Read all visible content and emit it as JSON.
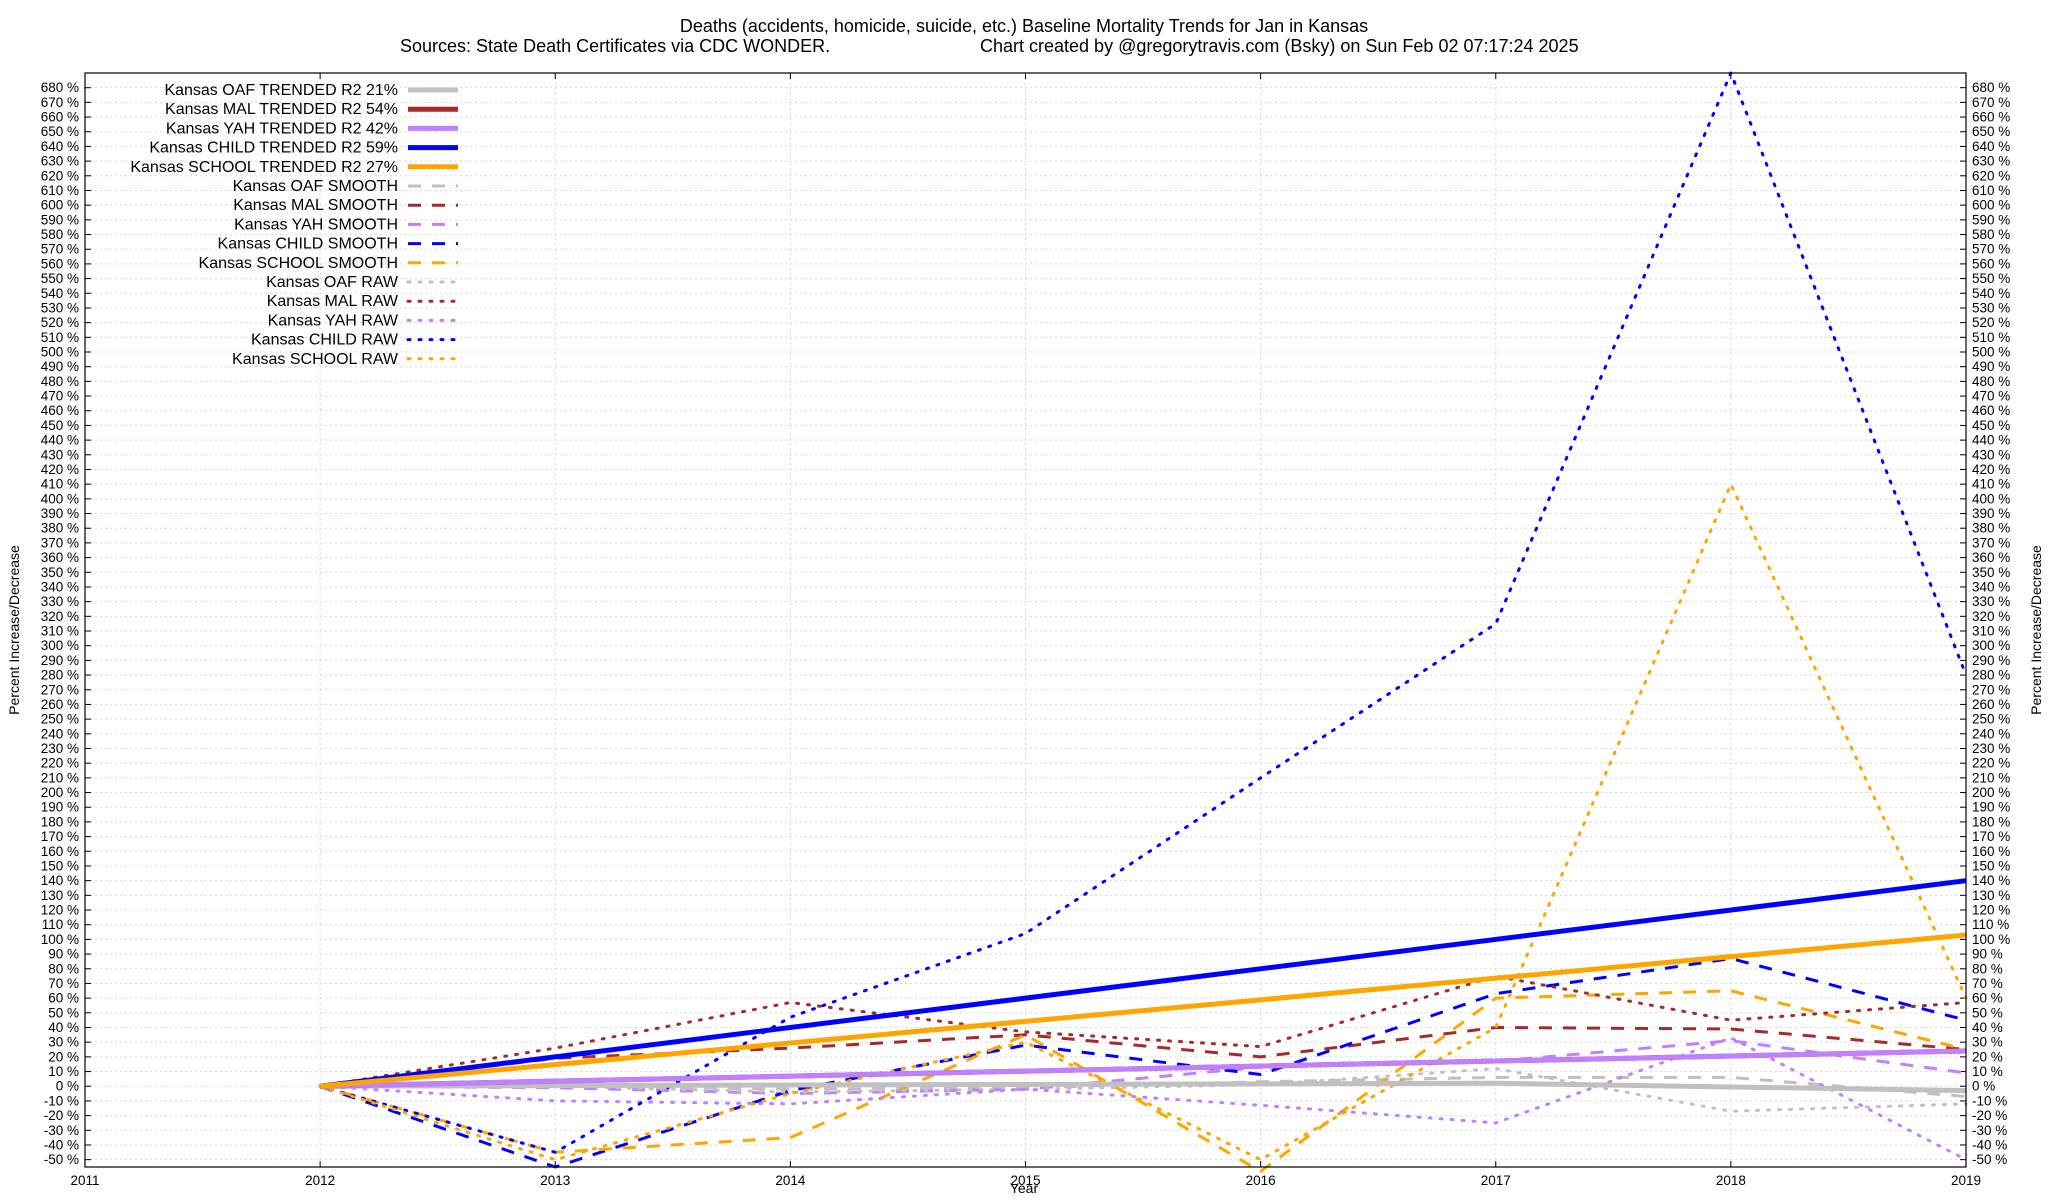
{
  "chart_data": {
    "type": "line",
    "title": "Deaths (accidents, homicide, suicide, etc.)  Baseline Mortality Trends for Jan in Kansas",
    "subtitle_left": "Sources: State Death Certificates via CDC WONDER.",
    "subtitle_right": "Chart created by @gregorytravis.com (Bsky) on Sun Feb 02 07:17:24 2025",
    "xlabel": "Year",
    "ylabel": "Percent Increase/Decrease",
    "ylabel_right": "Percent Increase/Decrease",
    "xlim": [
      2011,
      2019
    ],
    "ylim": [
      -55,
      690
    ],
    "x_ticks": [
      2011,
      2012,
      2013,
      2014,
      2015,
      2016,
      2017,
      2018,
      2019
    ],
    "y_tick_start": -50,
    "y_tick_end": 680,
    "y_tick_step": 10,
    "y_tick_suffix": " %",
    "grid": true,
    "legend_position": "top-left",
    "series": [
      {
        "name": "Kansas OAF TRENDED R2  21%",
        "style": "solid",
        "width": 5,
        "color": "#c0c0c0",
        "x": [
          2012,
          2017,
          2019
        ],
        "y": [
          0,
          2,
          -3
        ]
      },
      {
        "name": "Kansas MAL TRENDED R2  54%",
        "style": "solid",
        "width": 5,
        "color": "#a52a2a",
        "x": [
          2012,
          2019
        ],
        "y": [
          0,
          24
        ]
      },
      {
        "name": "Kansas YAH TRENDED R2  42%",
        "style": "solid",
        "width": 5,
        "color": "#c080ff",
        "x": [
          2012,
          2019
        ],
        "y": [
          0,
          24
        ]
      },
      {
        "name": "Kansas CHILD TRENDED R2  59%",
        "style": "solid",
        "width": 5,
        "color": "#0000ff",
        "x": [
          2012,
          2019
        ],
        "y": [
          0,
          140
        ]
      },
      {
        "name": "Kansas SCHOOL TRENDED R2  27%",
        "style": "solid",
        "width": 5,
        "color": "#ffa500",
        "x": [
          2012,
          2019
        ],
        "y": [
          0,
          103
        ]
      },
      {
        "name": "Kansas OAF SMOOTH",
        "style": "dashed",
        "width": 3,
        "color": "#c0c0c0",
        "x": [
          2012,
          2013,
          2014,
          2015,
          2016,
          2017,
          2018,
          2019
        ],
        "y": [
          0,
          0,
          -2,
          -1,
          3,
          6,
          6,
          -7
        ]
      },
      {
        "name": "Kansas MAL SMOOTH",
        "style": "dashed",
        "width": 3,
        "color": "#a52a2a",
        "x": [
          2012,
          2013,
          2014,
          2015,
          2016,
          2017,
          2018,
          2019
        ],
        "y": [
          0,
          19,
          26,
          35,
          20,
          40,
          39,
          25
        ]
      },
      {
        "name": "Kansas YAH SMOOTH",
        "style": "dashed",
        "width": 3,
        "color": "#c080ff",
        "x": [
          2012,
          2013,
          2014,
          2015,
          2016,
          2017,
          2018,
          2019
        ],
        "y": [
          0,
          -1,
          -5,
          -2,
          13,
          17,
          31,
          9
        ]
      },
      {
        "name": "Kansas CHILD SMOOTH",
        "style": "dashed",
        "width": 3,
        "color": "#0000ff",
        "x": [
          2012,
          2013,
          2014,
          2015,
          2016,
          2017,
          2018,
          2019
        ],
        "y": [
          0,
          -55,
          -3,
          28,
          8,
          63,
          87,
          45
        ]
      },
      {
        "name": "Kansas SCHOOL SMOOTH",
        "style": "dashed",
        "width": 3,
        "color": "#ffa500",
        "x": [
          2012,
          2013,
          2014,
          2015,
          2016,
          2017,
          2018,
          2019
        ],
        "y": [
          0,
          -45,
          -35,
          35,
          -58,
          60,
          65,
          25
        ]
      },
      {
        "name": "Kansas OAF RAW",
        "style": "dotted",
        "width": 3,
        "color": "#c0c0c0",
        "x": [
          2012,
          2013,
          2014,
          2015,
          2016,
          2017,
          2018,
          2019
        ],
        "y": [
          0,
          0,
          -4,
          -2,
          1,
          12,
          -17,
          -12
        ]
      },
      {
        "name": "Kansas MAL RAW",
        "style": "dotted",
        "width": 3,
        "color": "#a52a2a",
        "x": [
          2012,
          2013,
          2014,
          2015,
          2016,
          2017,
          2018,
          2019
        ],
        "y": [
          0,
          26,
          57,
          37,
          27,
          75,
          45,
          57
        ]
      },
      {
        "name": "Kansas YAH RAW",
        "style": "dotted",
        "width": 3,
        "color": "#c080ff",
        "x": [
          2012,
          2013,
          2014,
          2015,
          2016,
          2017,
          2018,
          2019
        ],
        "y": [
          0,
          -10,
          -12,
          -2,
          -13,
          -25,
          33,
          -50
        ]
      },
      {
        "name": "Kansas CHILD RAW",
        "style": "dotted",
        "width": 3,
        "color": "#0000ff",
        "x": [
          2012,
          2013,
          2014,
          2015,
          2016,
          2017,
          2018,
          2019
        ],
        "y": [
          0,
          -45,
          47,
          104,
          210,
          315,
          690,
          280
        ]
      },
      {
        "name": "Kansas SCHOOL RAW",
        "style": "dotted",
        "width": 3,
        "color": "#ffa500",
        "x": [
          2012,
          2013,
          2014,
          2015,
          2016,
          2017,
          2018,
          2019
        ],
        "y": [
          0,
          -50,
          -5,
          30,
          -50,
          40,
          410,
          60
        ]
      }
    ]
  }
}
